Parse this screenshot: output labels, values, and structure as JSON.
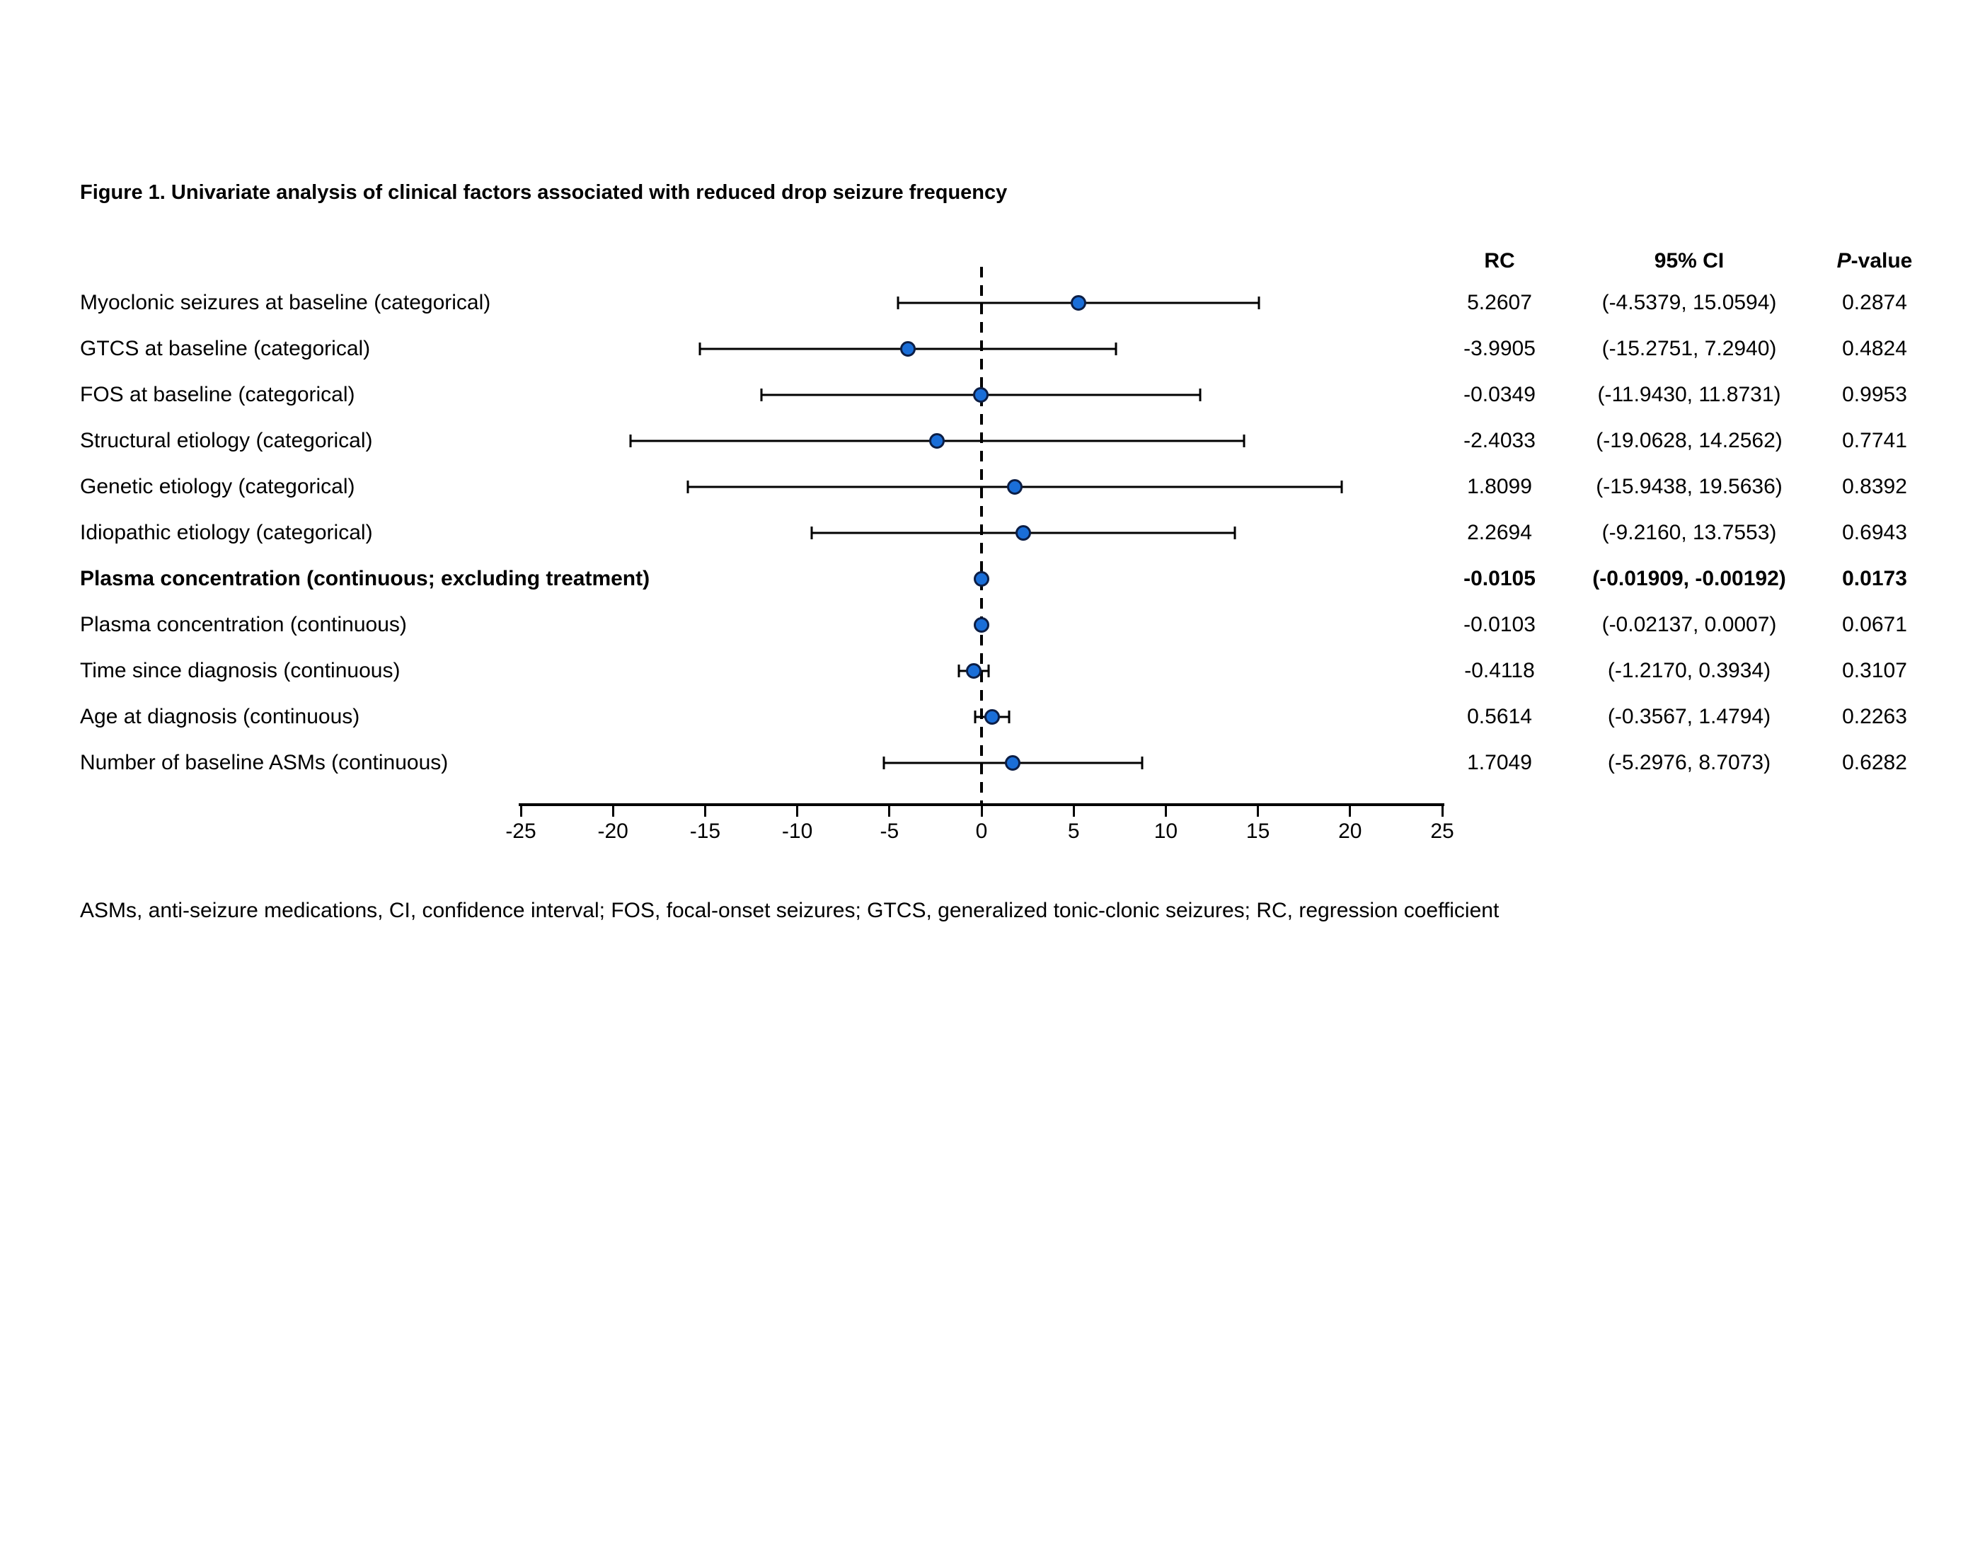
{
  "figure": {
    "title": "Figure 1. Univariate analysis of clinical factors associated with reduced drop seizure frequency",
    "footnote": "ASMs, anti-seizure medications, CI, confidence interval; FOS, focal-onset seizures; GTCS, generalized tonic-clonic seizures; RC, regression coefficient"
  },
  "table": {
    "columns": {
      "rc": "RC",
      "ci": "95% CI",
      "p_prefix": "P",
      "p_suffix": "-value"
    }
  },
  "chart_data": {
    "type": "scatter",
    "subtype": "forest-plot",
    "title": "Figure 1. Univariate analysis of clinical factors associated with reduced drop seizure frequency",
    "xlabel": "",
    "ylabel": "",
    "grid": false,
    "legend": "none",
    "marker_color": "#1a6ed8",
    "marker_edge_color": "#0c1e45",
    "line_color": "#000000",
    "x_axis": {
      "min": -25,
      "max": 25,
      "tick_step": 5,
      "tick_labels": [
        "-25",
        "-20",
        "-15",
        "-10",
        "-5",
        "0",
        "5",
        "10",
        "15",
        "20",
        "25"
      ],
      "zero_line": true
    },
    "rows": [
      {
        "label": "Myoclonic seizures at baseline (categorical)",
        "rc": 5.2607,
        "ci_low": -4.5379,
        "ci_high": 15.0594,
        "rc_text": "5.2607",
        "ci_text": "(-4.5379, 15.0594)",
        "p_text": "0.2874",
        "bold": false
      },
      {
        "label": "GTCS at baseline (categorical)",
        "rc": -3.9905,
        "ci_low": -15.2751,
        "ci_high": 7.294,
        "rc_text": "-3.9905",
        "ci_text": "(-15.2751, 7.2940)",
        "p_text": "0.4824",
        "bold": false
      },
      {
        "label": "FOS at baseline (categorical)",
        "rc": -0.0349,
        "ci_low": -11.943,
        "ci_high": 11.8731,
        "rc_text": "-0.0349",
        "ci_text": "(-11.9430, 11.8731)",
        "p_text": "0.9953",
        "bold": false
      },
      {
        "label": "Structural etiology (categorical)",
        "rc": -2.4033,
        "ci_low": -19.0628,
        "ci_high": 14.2562,
        "rc_text": "-2.4033",
        "ci_text": "(-19.0628, 14.2562)",
        "p_text": "0.7741",
        "bold": false
      },
      {
        "label": "Genetic etiology (categorical)",
        "rc": 1.8099,
        "ci_low": -15.9438,
        "ci_high": 19.5636,
        "rc_text": "1.8099",
        "ci_text": "(-15.9438, 19.5636)",
        "p_text": "0.8392",
        "bold": false
      },
      {
        "label": "Idiopathic etiology (categorical)",
        "rc": 2.2694,
        "ci_low": -9.216,
        "ci_high": 13.7553,
        "rc_text": "2.2694",
        "ci_text": "(-9.2160, 13.7553)",
        "p_text": "0.6943",
        "bold": false
      },
      {
        "label": "Plasma concentration (continuous; excluding treatment)",
        "rc": -0.0105,
        "ci_low": -0.01909,
        "ci_high": -0.00192,
        "rc_text": "-0.0105",
        "ci_text": "(-0.01909, -0.00192)",
        "p_text": "0.0173",
        "bold": true
      },
      {
        "label": "Plasma concentration (continuous)",
        "rc": -0.0103,
        "ci_low": -0.02137,
        "ci_high": 0.0007,
        "rc_text": "-0.0103",
        "ci_text": "(-0.02137, 0.0007)",
        "p_text": "0.0671",
        "bold": false
      },
      {
        "label": "Time since diagnosis (continuous)",
        "rc": -0.4118,
        "ci_low": -1.217,
        "ci_high": 0.3934,
        "rc_text": "-0.4118",
        "ci_text": "(-1.2170, 0.3934)",
        "p_text": "0.3107",
        "bold": false
      },
      {
        "label": "Age at diagnosis (continuous)",
        "rc": 0.5614,
        "ci_low": -0.3567,
        "ci_high": 1.4794,
        "rc_text": "0.5614",
        "ci_text": "(-0.3567, 1.4794)",
        "p_text": "0.2263",
        "bold": false
      },
      {
        "label": "Number of baseline ASMs (continuous)",
        "rc": 1.7049,
        "ci_low": -5.2976,
        "ci_high": 8.7073,
        "rc_text": "1.7049",
        "ci_text": "(-5.2976, 8.7073)",
        "p_text": "0.6282",
        "bold": false
      }
    ]
  }
}
